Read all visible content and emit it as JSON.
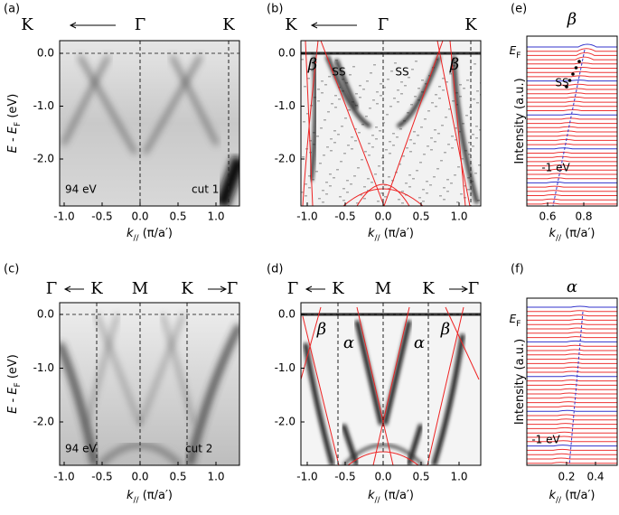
{
  "panels": [
    {
      "label": "(a)",
      "top_labels": [
        "K",
        "Γ",
        "K"
      ],
      "x_ticks": [
        "-1.0",
        "-0.5",
        "0.0",
        "0.5",
        "1.0"
      ],
      "y_ticks": [
        "0.0",
        "-1.0",
        "-2.0"
      ],
      "x_label": [
        "k",
        "//",
        " (π/a′)"
      ],
      "y_label": [
        "E - E",
        "F",
        " (eV)"
      ],
      "annotations": [
        "94 eV",
        "cut 1"
      ]
    },
    {
      "label": "(b)",
      "top_labels": [
        "K",
        "Γ",
        "K"
      ],
      "x_ticks": [
        "-1.0",
        "-0.5",
        "0.0",
        "0.5",
        "1.0"
      ],
      "y_ticks": [
        "0.0",
        "-1.0",
        "-2.0"
      ],
      "x_label": [
        "k",
        "//",
        " (π/a′)"
      ],
      "annotations": [
        "β",
        "SS",
        "SS",
        "β"
      ]
    },
    {
      "label": "(e)",
      "title": "β",
      "x_ticks": [
        "0.6",
        "0.8"
      ],
      "x_label": [
        "k",
        "//",
        " (π/a′)"
      ],
      "y_label": [
        "Intensity (a.u.)"
      ],
      "ef_label": [
        "E",
        "F"
      ],
      "annotations": [
        "SS",
        "-1 eV"
      ]
    },
    {
      "label": "(c)",
      "top_labels": [
        "Γ",
        "K",
        "M",
        "K",
        "Γ"
      ],
      "x_ticks": [
        "-1.0",
        "-0.5",
        "0.0",
        "0.5",
        "1.0"
      ],
      "y_ticks": [
        "0.0",
        "-1.0",
        "-2.0"
      ],
      "x_label": [
        "k",
        "//",
        " (π/a′)"
      ],
      "y_label": [
        "E - E",
        "F",
        " (eV)"
      ],
      "annotations": [
        "94 eV",
        "cut 2"
      ]
    },
    {
      "label": "(d)",
      "top_labels": [
        "Γ",
        "K",
        "M",
        "K",
        "Γ"
      ],
      "x_ticks": [
        "-1.0",
        "-0.5",
        "0.0",
        "0.5",
        "1.0"
      ],
      "y_ticks": [
        "0.0",
        "-1.0",
        "-2.0"
      ],
      "x_label": [
        "k",
        "//",
        " (π/a′)"
      ],
      "annotations": [
        "β",
        "α",
        "α",
        "β"
      ]
    },
    {
      "label": "(f)",
      "title": "α",
      "x_ticks": [
        "0.2",
        "0.4"
      ],
      "x_label": [
        "k",
        "//",
        " (π/a′)"
      ],
      "y_label": [
        "Intensity (a.u.)"
      ],
      "ef_label": [
        "E",
        "F"
      ],
      "annotations": [
        "-1 eV"
      ]
    }
  ]
}
